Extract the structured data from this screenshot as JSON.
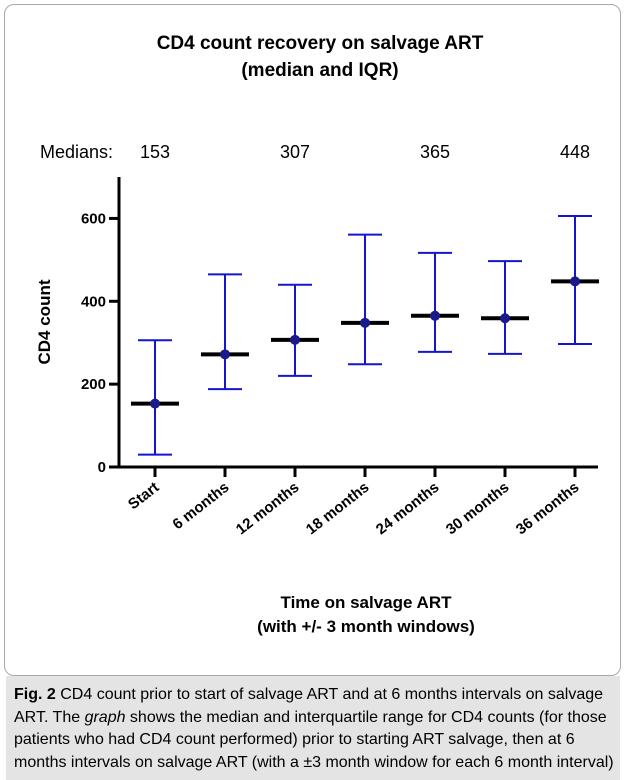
{
  "figure": {
    "caption_label": "Fig. 2",
    "caption_text_1": "CD4 count prior to start of salvage ART and at 6 months intervals on salvage ART. The ",
    "caption_emphasis": "graph",
    "caption_text_2": " shows the median and interquartile range for CD4 counts (for those patients who had CD4 count performed) prior to starting ART salvage, then at 6 months intervals on salvage ART (with a ±3 month window for each 6 month interval)"
  },
  "chart_data": {
    "type": "errorbar",
    "title": [
      "CD4 count recovery on salvage ART",
      "(median and IQR)"
    ],
    "medians_label": "Medians:",
    "median_annotations": [
      {
        "category": "Start",
        "text": "153"
      },
      {
        "category": "12 months",
        "text": "307"
      },
      {
        "category": "24 months",
        "text": "365"
      },
      {
        "category": "36 months",
        "text": "448"
      }
    ],
    "xlabel": [
      "Time on salvage ART",
      "(with +/- 3 month windows)"
    ],
    "ylabel": "CD4 count",
    "ylim": [
      0,
      700
    ],
    "yticks": [
      0,
      200,
      400,
      600
    ],
    "categories": [
      "Start",
      "6 months",
      "12 months",
      "18 months",
      "24 months",
      "30 months",
      "36 months"
    ],
    "median": [
      153,
      272,
      307,
      348,
      365,
      359,
      448
    ],
    "q1": [
      30,
      188,
      220,
      248,
      278,
      273,
      297
    ],
    "q3": [
      306,
      465,
      440,
      561,
      517,
      497,
      606
    ],
    "colors": {
      "whisker": "#1515d0",
      "median_bar": "#000000",
      "point": "#1a1a8a"
    }
  }
}
